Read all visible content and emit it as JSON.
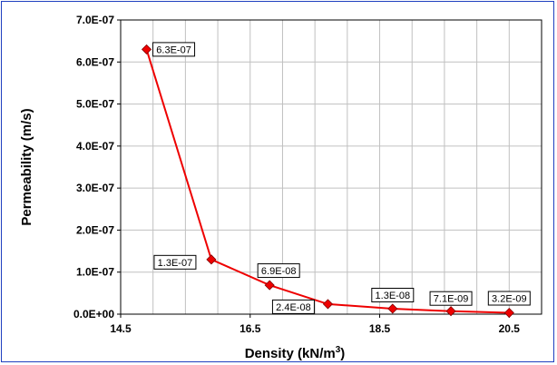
{
  "chart_data": {
    "type": "line",
    "title": "",
    "xlabel": "Density (kN/m",
    "xlabel_sup": "3",
    "xlabel_end": ")",
    "ylabel": "Permeability (m/s)",
    "xlim": [
      14.5,
      21.0
    ],
    "ylim": [
      0,
      7e-07
    ],
    "x_ticks": [
      14.5,
      16.5,
      18.5,
      20.5
    ],
    "x_tick_labels": [
      "14.5",
      "16.5",
      "18.5",
      "20.5"
    ],
    "y_ticks": [
      0,
      1e-07,
      2e-07,
      3e-07,
      4e-07,
      5e-07,
      6e-07,
      7e-07
    ],
    "y_tick_labels": [
      "0.0E+00",
      "1.0E-07",
      "2.0E-07",
      "3.0E-07",
      "4.0E-07",
      "5.0E-07",
      "6.0E-07",
      "7.0E-07"
    ],
    "x_minor_step": 0.5,
    "grid": true,
    "series": [
      {
        "color": "#ee0000",
        "marker": "diamond",
        "x": [
          14.9,
          15.9,
          16.8,
          17.7,
          18.7,
          19.6,
          20.5
        ],
        "y": [
          6.3e-07,
          1.3e-07,
          6.9e-08,
          2.4e-08,
          1.3e-08,
          7.1e-09,
          3.2e-09
        ],
        "labels": [
          "6.3E-07",
          "1.3E-07",
          "6.9E-08",
          "2.4E-08",
          "1.3E-08",
          "7.1E-09",
          "3.2E-09"
        ]
      }
    ]
  }
}
